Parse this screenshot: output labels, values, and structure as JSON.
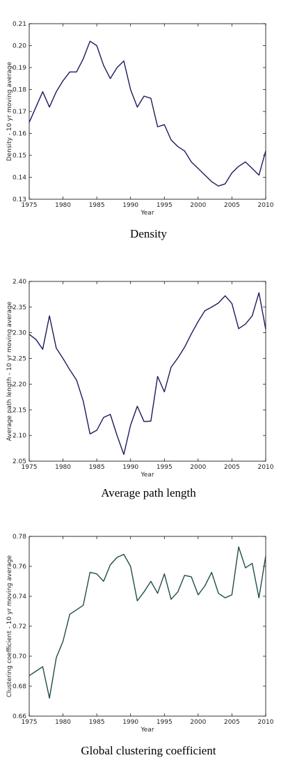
{
  "chart_data": [
    {
      "type": "line",
      "caption": "Density",
      "xlabel": "Year",
      "ylabel": "Density - 10 yr moving average",
      "xlim": [
        1975,
        2010
      ],
      "ylim": [
        0.13,
        0.21
      ],
      "xticks": [
        1975,
        1980,
        1985,
        1990,
        1995,
        2000,
        2005,
        2010
      ],
      "yticks": [
        0.13,
        0.14,
        0.15,
        0.16,
        0.17,
        0.18,
        0.19,
        0.2,
        0.21
      ],
      "ytick_labels": [
        "0.13",
        "0.14",
        "0.15",
        "0.16",
        "0.17",
        "0.18",
        "0.19",
        "0.20",
        "0.21"
      ],
      "line_color": "#1a1a5e",
      "x": [
        1975,
        1976,
        1977,
        1978,
        1979,
        1980,
        1981,
        1982,
        1983,
        1984,
        1985,
        1986,
        1987,
        1988,
        1989,
        1990,
        1991,
        1992,
        1993,
        1994,
        1995,
        1996,
        1997,
        1998,
        1999,
        2000,
        2001,
        2002,
        2003,
        2004,
        2005,
        2006,
        2007,
        2008,
        2009,
        2010
      ],
      "values": [
        0.165,
        0.172,
        0.179,
        0.172,
        0.179,
        0.184,
        0.188,
        0.188,
        0.194,
        0.202,
        0.2,
        0.191,
        0.185,
        0.19,
        0.193,
        0.18,
        0.172,
        0.177,
        0.176,
        0.163,
        0.164,
        0.157,
        0.154,
        0.152,
        0.147,
        0.144,
        0.141,
        0.138,
        0.136,
        0.137,
        0.142,
        0.145,
        0.147,
        0.144,
        0.141,
        0.152
      ]
    },
    {
      "type": "line",
      "caption": "Average path length",
      "xlabel": "Year",
      "ylabel": "Average path length - 10 yr moving average",
      "xlim": [
        1975,
        2010
      ],
      "ylim": [
        2.05,
        2.4
      ],
      "xticks": [
        1975,
        1980,
        1985,
        1990,
        1995,
        2000,
        2005,
        2010
      ],
      "yticks": [
        2.05,
        2.1,
        2.15,
        2.2,
        2.25,
        2.3,
        2.35,
        2.4
      ],
      "ytick_labels": [
        "2.05",
        "2.10",
        "2.15",
        "2.20",
        "2.25",
        "2.30",
        "2.35",
        "2.40"
      ],
      "line_color": "#1a1a5e",
      "x": [
        1975,
        1976,
        1977,
        1978,
        1979,
        1980,
        1981,
        1982,
        1983,
        1984,
        1985,
        1986,
        1987,
        1988,
        1989,
        1990,
        1991,
        1992,
        1993,
        1994,
        1995,
        1996,
        1997,
        1998,
        1999,
        2000,
        2001,
        2002,
        2003,
        2004,
        2005,
        2006,
        2007,
        2008,
        2009,
        2010
      ],
      "values": [
        2.297,
        2.287,
        2.268,
        2.333,
        2.27,
        2.25,
        2.228,
        2.208,
        2.167,
        2.103,
        2.11,
        2.135,
        2.141,
        2.1,
        2.063,
        2.12,
        2.157,
        2.127,
        2.128,
        2.215,
        2.185,
        2.233,
        2.251,
        2.272,
        2.298,
        2.322,
        2.343,
        2.35,
        2.358,
        2.372,
        2.357,
        2.308,
        2.317,
        2.333,
        2.378,
        2.307
      ]
    },
    {
      "type": "line",
      "caption": "Global clustering coefficient",
      "xlabel": "Year",
      "ylabel": "Clustering coefficient - 10 yr moving average",
      "xlim": [
        1975,
        2010
      ],
      "ylim": [
        0.66,
        0.78
      ],
      "xticks": [
        1975,
        1980,
        1985,
        1990,
        1995,
        2000,
        2005,
        2010
      ],
      "yticks": [
        0.66,
        0.68,
        0.7,
        0.72,
        0.74,
        0.76,
        0.78
      ],
      "ytick_labels": [
        "0.66",
        "0.68",
        "0.70",
        "0.72",
        "0.74",
        "0.76",
        "0.78"
      ],
      "line_color": "#1e4d4a",
      "x": [
        1975,
        1976,
        1977,
        1978,
        1979,
        1980,
        1981,
        1982,
        1983,
        1984,
        1985,
        1986,
        1987,
        1988,
        1989,
        1990,
        1991,
        1992,
        1993,
        1994,
        1995,
        1996,
        1997,
        1998,
        1999,
        2000,
        2001,
        2002,
        2003,
        2004,
        2005,
        2006,
        2007,
        2008,
        2009,
        2010
      ],
      "values": [
        0.687,
        0.69,
        0.693,
        0.672,
        0.699,
        0.71,
        0.728,
        0.731,
        0.734,
        0.756,
        0.755,
        0.75,
        0.761,
        0.766,
        0.768,
        0.76,
        0.737,
        0.743,
        0.75,
        0.742,
        0.755,
        0.738,
        0.743,
        0.754,
        0.753,
        0.741,
        0.747,
        0.756,
        0.742,
        0.739,
        0.741,
        0.773,
        0.759,
        0.762,
        0.739,
        0.767
      ]
    }
  ]
}
